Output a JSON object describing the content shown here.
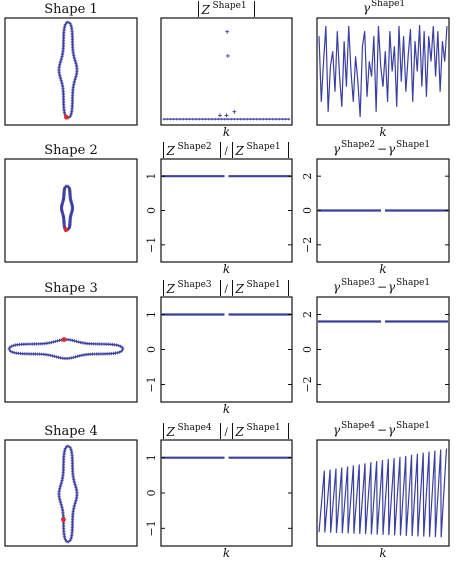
{
  "figure": {
    "rows": [
      {
        "shape_label": "Shape 1",
        "mag_title": {
          "num": "Shape1",
          "den": ""
        },
        "phase_title": {
          "a": "Shape1",
          "b": ""
        },
        "mag_xlabel": "k",
        "phase_xlabel": "k"
      },
      {
        "shape_label": "Shape 2",
        "mag_title": {
          "num": "Shape2",
          "den": "Shape1"
        },
        "phase_title": {
          "a": "Shape2",
          "b": "Shape1"
        },
        "mag_xlabel": "k",
        "phase_xlabel": "k"
      },
      {
        "shape_label": "Shape 3",
        "mag_title": {
          "num": "Shape3",
          "den": "Shape1"
        },
        "phase_title": {
          "a": "Shape3",
          "b": "Shape1"
        },
        "mag_xlabel": "k",
        "phase_xlabel": ""
      },
      {
        "shape_label": "Shape 4",
        "mag_title": {
          "num": "Shape4",
          "den": "Shape1"
        },
        "phase_title": {
          "a": "Shape4",
          "b": "Shape1"
        },
        "mag_xlabel": "k",
        "phase_xlabel": "k"
      }
    ],
    "symbols": {
      "Z": "Z",
      "gamma": "γ",
      "minus": "−",
      "slash": "/"
    }
  },
  "chart_data": [
    {
      "type": "line",
      "name": "shape-outlines",
      "shapes": [
        "vertical-dumbbell-large",
        "vertical-dumbbell-small",
        "horizontal-dumbbell",
        "vertical-dumbbell-large-rotated-start"
      ],
      "colors": {
        "contour": "#3a3fa0",
        "start_point": "#e8262b"
      }
    },
    {
      "type": "scatter",
      "name": "magnitude-row-1",
      "note_series": "|Z| spectrum, values near zero with two outliers",
      "points": [
        {
          "k": 0.505,
          "v": 0.96
        },
        {
          "k": 0.51,
          "v": 0.7
        },
        {
          "k": 0.56,
          "v": 0.1
        },
        {
          "k": 0.45,
          "v": 0.06
        },
        {
          "k": 0.5,
          "v": 0.06
        }
      ],
      "baseline": 0.02,
      "ylim": [
        0,
        1
      ]
    },
    {
      "type": "line",
      "name": "phase-row-1",
      "values": [
        0.85,
        0.2,
        0.6,
        0.95,
        0.1,
        0.55,
        0.7,
        0.3,
        0.9,
        0.45,
        0.15,
        0.8,
        0.35,
        0.95,
        0.5,
        0.2,
        0.65,
        0.4,
        0.05,
        0.75,
        0.9,
        0.25,
        0.6,
        0.45,
        0.85,
        0.1,
        0.95,
        0.55,
        0.35,
        0.7,
        0.2,
        0.9,
        0.5,
        0.75,
        0.15,
        0.95,
        0.4,
        0.85,
        0.3,
        0.65,
        0.92,
        0.2,
        0.8,
        0.5,
        0.96,
        0.35,
        0.9,
        0.25,
        0.85,
        0.6,
        0.95,
        0.45,
        0.9,
        0.3,
        0.8,
        0.6,
        0.95
      ],
      "ylim": [
        0,
        1
      ]
    },
    {
      "type": "line",
      "name": "magnitude-ratio-rows",
      "rows": [
        {
          "value": 1.0,
          "ylim": [
            -1.5,
            1.5
          ],
          "yticks": [
            "1",
            "0",
            "−1"
          ]
        },
        {
          "value": 1.0,
          "ylim": [
            -1.5,
            1.5
          ],
          "yticks": [
            "1",
            "0",
            "−1"
          ]
        },
        {
          "value": 1.0,
          "ylim": [
            -1.5,
            1.5
          ],
          "yticks": [
            "1",
            "0",
            "−1"
          ]
        }
      ]
    },
    {
      "type": "line",
      "name": "phase-difference-rows",
      "rows": [
        {
          "value": 0.0,
          "ylim": [
            -3,
            3
          ],
          "yticks": [
            "2",
            "0",
            "−2"
          ]
        },
        {
          "value": 1.6,
          "ylim": [
            -3,
            3
          ],
          "yticks": [
            "2",
            "0",
            "−2"
          ]
        },
        {
          "sawtooth_periods": 22,
          "low": 0.08,
          "high": 0.92,
          "ylim": [
            0,
            1
          ]
        }
      ]
    }
  ]
}
